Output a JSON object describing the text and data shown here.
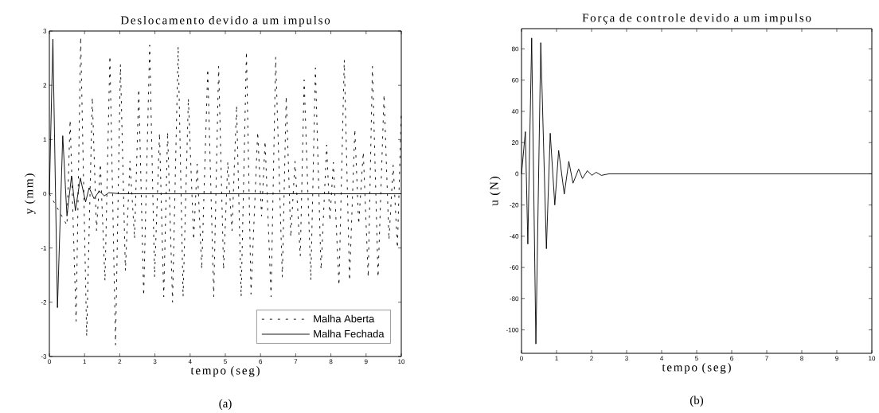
{
  "chart_data": [
    {
      "type": "line",
      "title": "Deslocamento devido a um impulso",
      "xlabel": "tempo (seg)",
      "ylabel": "y (mm)",
      "annotations": [
        "(a)"
      ],
      "xlim": [
        0,
        10
      ],
      "ylim": [
        -3,
        3
      ],
      "xticks": [
        0,
        1,
        2,
        3,
        4,
        5,
        6,
        7,
        8,
        9,
        10
      ],
      "yticks": [
        -3,
        -2,
        -1,
        0,
        1,
        2,
        3
      ],
      "legend": "bottom right",
      "series": [
        {
          "name": "Malha Aberta",
          "color": "#000000",
          "line_style": "dashed",
          "x": [
            0,
            0.5,
            0.59,
            0.76,
            0.89,
            1.06,
            1.22,
            1.34,
            1.45,
            1.58,
            1.72,
            1.88,
            2.02,
            2.16,
            2.29,
            2.42,
            2.54,
            2.68,
            2.85,
            2.99,
            3.13,
            3.25,
            3.36,
            3.5,
            3.66,
            3.8,
            3.95,
            4.1,
            4.2,
            4.33,
            4.5,
            4.67,
            4.81,
            4.95,
            5.07,
            5.19,
            5.32,
            5.45,
            5.6,
            5.73,
            5.92,
            6.03,
            6.13,
            6.3,
            6.43,
            6.62,
            6.73,
            6.86,
            6.98,
            7.13,
            7.24,
            7.43,
            7.56,
            7.72,
            7.88,
            7.97,
            8.07,
            8.23,
            8.38,
            8.53,
            8.68,
            8.79,
            8.92,
            9.06,
            9.18,
            9.34,
            9.51,
            9.65,
            9.77,
            9.89,
            10
          ],
          "values": [
            0,
            -0.58,
            1.36,
            -2.35,
            2.89,
            -2.63,
            1.78,
            -0.68,
            0.55,
            -1.61,
            2.54,
            -2.79,
            2.39,
            -1.42,
            0.6,
            -0.83,
            1.93,
            -1.88,
            2.74,
            -1.54,
            1.12,
            -1.9,
            1.14,
            -2.0,
            2.72,
            -1.9,
            1.76,
            -0.85,
            0.55,
            -1.39,
            2.3,
            -1.9,
            2.35,
            -1.4,
            0.59,
            -0.68,
            1.63,
            -1.9,
            2.62,
            -1.85,
            1.14,
            -0.41,
            0.97,
            -1.9,
            2.52,
            -1.54,
            1.8,
            -0.8,
            0.6,
            -1.15,
            2.1,
            -1.6,
            2.32,
            -1.4,
            0.9,
            -0.5,
            0.58,
            -1.69,
            2.47,
            -1.6,
            1.19,
            -0.56,
            0.77,
            -1.54,
            2.35,
            -1.54,
            1.83,
            -0.85,
            0.53,
            -1.0,
            1.5
          ]
        },
        {
          "name": "Malha Fechada",
          "color": "#000000",
          "line_style": "solid",
          "x": [
            0,
            0.1,
            0.23,
            0.38,
            0.5,
            0.63,
            0.74,
            0.88,
            1.03,
            1.13,
            1.27,
            1.42,
            1.56,
            1.69,
            2.0,
            10
          ],
          "values": [
            0,
            2.85,
            -2.1,
            1.07,
            -0.41,
            0.33,
            -0.31,
            0.29,
            -0.15,
            0.11,
            -0.09,
            0.05,
            -0.04,
            0.02,
            0,
            0
          ]
        }
      ]
    },
    {
      "type": "line",
      "title": "Força de controle devido a um impulso",
      "xlabel": "tempo (seg)",
      "ylabel": "u (N)",
      "annotations": [
        "(b)"
      ],
      "xlim": [
        0,
        10
      ],
      "ylim": [
        -115,
        93
      ],
      "xticks": [
        0,
        1,
        2,
        3,
        4,
        5,
        6,
        7,
        8,
        9,
        10
      ],
      "yticks": [
        -100,
        -80,
        -60,
        -40,
        -20,
        0,
        20,
        40,
        60,
        80
      ],
      "series": [
        {
          "color": "#000000",
          "line_style": "solid",
          "x": [
            0,
            0.11,
            0.18,
            0.29,
            0.41,
            0.55,
            0.71,
            0.82,
            0.95,
            1.06,
            1.22,
            1.35,
            1.47,
            1.63,
            1.74,
            1.88,
            2.01,
            2.13,
            2.28,
            2.5,
            10
          ],
          "values": [
            0,
            27,
            -45,
            87,
            -109,
            84,
            -48,
            26,
            -20,
            15,
            -13,
            8,
            -6,
            3,
            -3,
            2,
            -1,
            1,
            -1,
            0,
            0
          ]
        }
      ]
    }
  ]
}
